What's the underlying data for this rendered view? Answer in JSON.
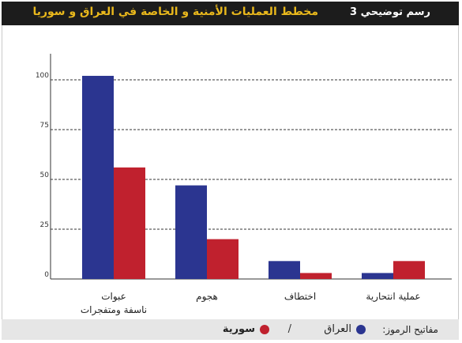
{
  "header": {
    "figure_number": "رسم توضيحي 3",
    "title": "مخطط العمليات الأمنية و الخاصة في العراق و سوريا"
  },
  "legend": {
    "label": "مفاتيح الرموز:",
    "separator": "/"
  },
  "colors": {
    "iraq": "#2b3590",
    "syria": "#c0212e",
    "header_bg": "#1c1c1c",
    "title": "#e9b81c"
  },
  "chart_data": {
    "type": "bar",
    "categories": [
      "عبوات ناسفة ومتفجرات",
      "هجوم",
      "اختطاف",
      "عملية انتحارية"
    ],
    "series": [
      {
        "name": "العراق",
        "values": [
          102,
          47,
          9,
          3
        ]
      },
      {
        "name": "سورية",
        "values": [
          56,
          20,
          3,
          9
        ]
      }
    ],
    "ylim": [
      0,
      100
    ],
    "yticks": [
      0,
      25,
      50,
      75,
      100
    ],
    "title": "",
    "xlabel": "",
    "ylabel": "",
    "grid": true,
    "legend_position": "bottom"
  }
}
